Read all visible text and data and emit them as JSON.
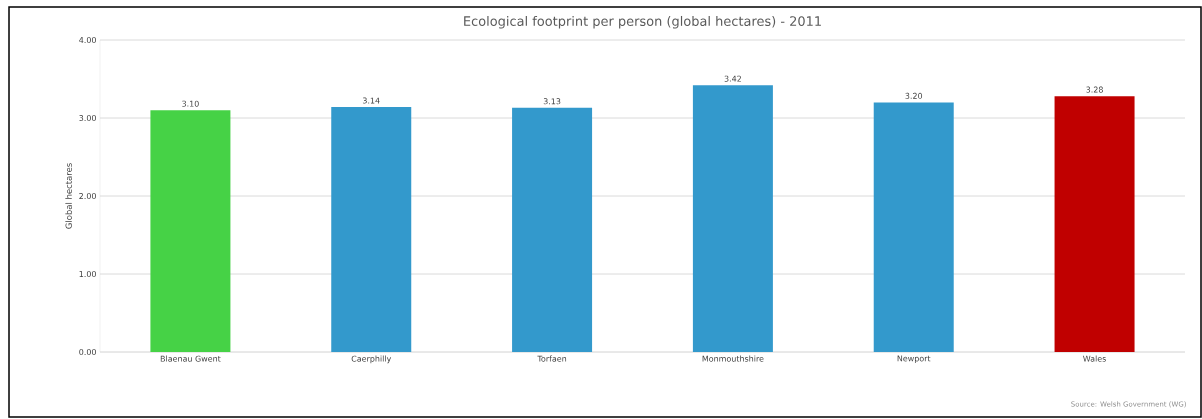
{
  "chart_data": {
    "type": "bar",
    "title": "Ecological footprint per person (global hectares) - 2011",
    "ylabel": "Global hectares",
    "categories": [
      "Blaenau Gwent",
      "Caerphilly",
      "Torfaen",
      "Monmouthshire",
      "Newport",
      "Wales"
    ],
    "values": [
      3.1,
      3.14,
      3.13,
      3.42,
      3.2,
      3.28
    ],
    "colors": [
      "#46d246",
      "#3399cc",
      "#3399cc",
      "#3399cc",
      "#3399cc",
      "#c00000"
    ],
    "value_labels": [
      "3.10",
      "3.14",
      "3.13",
      "3.42",
      "3.20",
      "3.28"
    ],
    "ylim": [
      0,
      4
    ],
    "yticks": [
      {
        "value": 0,
        "label": "0.00"
      },
      {
        "value": 1,
        "label": "1.00"
      },
      {
        "value": 2,
        "label": "2.00"
      },
      {
        "value": 3,
        "label": "3.00"
      },
      {
        "value": 4,
        "label": "4.00"
      }
    ],
    "grid": "y",
    "annotations": [
      "Source: Welsh Government (WG)"
    ]
  }
}
